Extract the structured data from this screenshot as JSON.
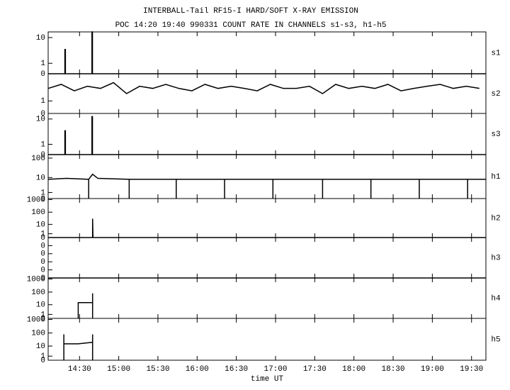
{
  "chart_data": [
    {
      "type": "line",
      "title": "INTERBALL-Tail RF15-I HARD/SOFT X-RAY EMISSION",
      "subtitle": "POC 14:20 19:40 990331  COUNT RATE IN CHANNELS s1-s3, h1-h5",
      "yscale": "log1p",
      "ylim": [
        0,
        15
      ],
      "yticks": [
        0,
        1,
        10
      ],
      "x": [
        846,
        858.8,
        858.8,
        859.2,
        859.2,
        879.5,
        879.5,
        879.9,
        879.9,
        1181
      ],
      "series": [
        {
          "name": "s1",
          "color": "#000000",
          "values": [
            0,
            0,
            4,
            4,
            0,
            0,
            15,
            15,
            0,
            0
          ]
        }
      ]
    },
    {
      "type": "line",
      "yscale": "log1p",
      "ylim": [
        0,
        8
      ],
      "yticks": [
        0,
        1
      ],
      "x": [
        846,
        856,
        866,
        876,
        886,
        896,
        906,
        916,
        926,
        936,
        946,
        956,
        966,
        976,
        986,
        996,
        1006,
        1016,
        1026,
        1036,
        1046,
        1056,
        1066,
        1076,
        1086,
        1096,
        1106,
        1116,
        1126,
        1136,
        1146,
        1156,
        1166,
        1176
      ],
      "series": [
        {
          "name": "s2",
          "color": "#000000",
          "values": [
            3,
            4,
            2.5,
            3.5,
            3,
            4.5,
            2,
            3.5,
            3,
            4,
            3,
            2.5,
            4,
            3,
            3.5,
            3,
            2.5,
            4,
            3,
            3,
            3.5,
            2,
            4,
            3,
            3.5,
            3,
            4,
            2.5,
            3,
            3.5,
            4,
            3,
            3.5,
            3
          ]
        }
      ]
    },
    {
      "type": "line",
      "yscale": "log1p",
      "ylim": [
        0,
        15
      ],
      "yticks": [
        0,
        1,
        10
      ],
      "x": [
        846,
        858.8,
        858.8,
        859.2,
        859.2,
        879.5,
        879.5,
        879.9,
        879.9,
        1181
      ],
      "series": [
        {
          "name": "s3",
          "color": "#000000",
          "values": [
            0,
            0,
            4,
            4,
            0,
            0,
            12,
            12,
            0,
            0
          ]
        }
      ]
    },
    {
      "type": "line",
      "yscale": "log1p",
      "ylim": [
        0,
        150
      ],
      "yticks": [
        0,
        1,
        10,
        100
      ],
      "x": [
        846,
        860,
        877,
        877,
        877,
        880,
        884,
        908,
        908,
        908,
        944,
        944,
        944,
        981,
        981,
        981,
        1018,
        1018,
        1018,
        1056,
        1056,
        1056,
        1093,
        1093,
        1093,
        1130,
        1130,
        1130,
        1167,
        1167,
        1167,
        1181
      ],
      "series": [
        {
          "name": "h1",
          "color": "#000000",
          "values": [
            8,
            9,
            8,
            0,
            8,
            15,
            9,
            8,
            0,
            8,
            8,
            0,
            8,
            8,
            0,
            8,
            8,
            0,
            8,
            8,
            0,
            8,
            8,
            0,
            8,
            8,
            0,
            8,
            8,
            0,
            8,
            8
          ]
        }
      ]
    },
    {
      "type": "line",
      "yscale": "log1p",
      "ylim": [
        0,
        1200
      ],
      "yticks": [
        0,
        1,
        10,
        100,
        1000
      ],
      "x": [
        846,
        880,
        880,
        880.3,
        1181
      ],
      "series": [
        {
          "name": "h2",
          "color": "#000000",
          "values": [
            0,
            0,
            30,
            0,
            0
          ]
        }
      ]
    },
    {
      "type": "line",
      "yscale": "linear",
      "ylim": [
        0,
        1
      ],
      "yticks": [
        {
          "value": 0,
          "label": "0"
        },
        {
          "value": 0.2,
          "label": "0"
        },
        {
          "value": 0.4,
          "label": "0"
        },
        {
          "value": 0.6,
          "label": "0"
        },
        {
          "value": 0.8,
          "label": "0"
        }
      ],
      "x": [
        846,
        1181
      ],
      "series": [
        {
          "name": "h3",
          "color": "#000000",
          "values": [
            0,
            0
          ]
        }
      ]
    },
    {
      "type": "line",
      "yscale": "log1p",
      "ylim": [
        0,
        1200
      ],
      "yticks": [
        0,
        1,
        10,
        100,
        1000
      ],
      "x": [
        869,
        869,
        880,
        880,
        880
      ],
      "series": [
        {
          "name": "h4",
          "color": "#000000",
          "values": [
            0,
            15,
            15,
            80,
            0
          ]
        }
      ]
    },
    {
      "type": "line",
      "yscale": "log1p",
      "ylim": [
        0,
        1200
      ],
      "yticks": [
        0,
        1,
        10,
        100,
        1000
      ],
      "x": [
        858,
        858,
        858,
        869,
        880,
        880,
        880
      ],
      "series": [
        {
          "name": "h5",
          "color": "#000000",
          "values": [
            0,
            80,
            15,
            15,
            20,
            80,
            0
          ]
        }
      ],
      "xlabel": "time UT",
      "xlim": [
        846,
        1181
      ],
      "xticks": [
        {
          "value": 870,
          "label": "14:30"
        },
        {
          "value": 900,
          "label": "15:00"
        },
        {
          "value": 930,
          "label": "15:30"
        },
        {
          "value": 960,
          "label": "16:00"
        },
        {
          "value": 990,
          "label": "16:30"
        },
        {
          "value": 1020,
          "label": "17:00"
        },
        {
          "value": 1050,
          "label": "17:30"
        },
        {
          "value": 1080,
          "label": "18:00"
        },
        {
          "value": 1110,
          "label": "18:30"
        },
        {
          "value": 1140,
          "label": "19:00"
        },
        {
          "value": 1170,
          "label": "19:30"
        }
      ]
    }
  ]
}
